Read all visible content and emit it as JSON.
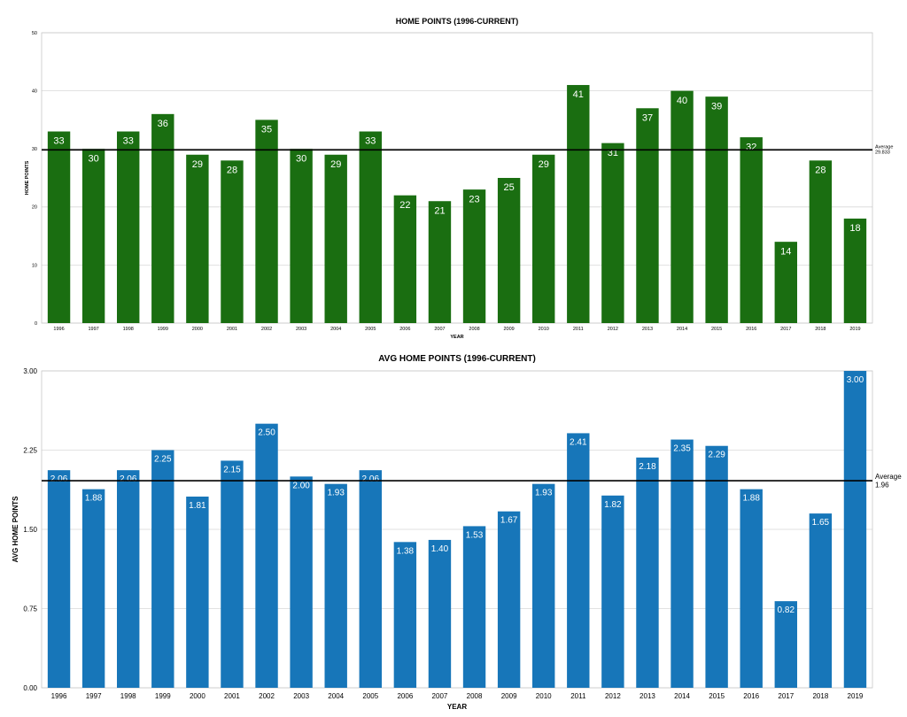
{
  "chart_data": [
    {
      "type": "bar",
      "title": "HOME POINTS (1996-CURRENT)",
      "xlabel": "YEAR",
      "ylabel": "HOME POINTS",
      "categories": [
        "1996",
        "1997",
        "1998",
        "1999",
        "2000",
        "2001",
        "2002",
        "2003",
        "2004",
        "2005",
        "2006",
        "2007",
        "2008",
        "2009",
        "2010",
        "2011",
        "2012",
        "2013",
        "2014",
        "2015",
        "2016",
        "2017",
        "2018",
        "2019"
      ],
      "values": [
        33,
        30,
        33,
        36,
        29,
        28,
        35,
        30,
        29,
        33,
        22,
        21,
        23,
        25,
        29,
        41,
        31,
        37,
        40,
        39,
        32,
        14,
        28,
        18
      ],
      "value_labels": [
        "33",
        "30",
        "33",
        "36",
        "29",
        "28",
        "35",
        "30",
        "29",
        "33",
        "22",
        "21",
        "23",
        "25",
        "29",
        "41",
        "31",
        "37",
        "40",
        "39",
        "32",
        "14",
        "28",
        "18"
      ],
      "ylim": [
        0,
        50
      ],
      "yticks": [
        0,
        10,
        20,
        30,
        40,
        50
      ],
      "ytick_labels": [
        "0",
        "10",
        "20",
        "30",
        "40",
        "50"
      ],
      "average": 29.833,
      "average_label_line1": "Average",
      "average_label_line2": "29.833",
      "bar_color": "#1a6e11",
      "grid": true
    },
    {
      "type": "bar",
      "title": "AVG HOME POINTS (1996-CURRENT)",
      "xlabel": "YEAR",
      "ylabel": "AVG HOME POINTS",
      "categories": [
        "1996",
        "1997",
        "1998",
        "1999",
        "2000",
        "2001",
        "2002",
        "2003",
        "2004",
        "2005",
        "2006",
        "2007",
        "2008",
        "2009",
        "2010",
        "2011",
        "2012",
        "2013",
        "2014",
        "2015",
        "2016",
        "2017",
        "2018",
        "2019"
      ],
      "values": [
        2.06,
        1.88,
        2.06,
        2.25,
        1.81,
        2.15,
        2.5,
        2.0,
        1.93,
        2.06,
        1.38,
        1.4,
        1.53,
        1.67,
        1.93,
        2.41,
        1.82,
        2.18,
        2.35,
        2.29,
        1.88,
        0.82,
        1.65,
        3.0
      ],
      "value_labels": [
        "2.06",
        "1.88",
        "2.06",
        "2.25",
        "1.81",
        "2.15",
        "2.50",
        "2.00",
        "1.93",
        "2.06",
        "1.38",
        "1.40",
        "1.53",
        "1.67",
        "1.93",
        "2.41",
        "1.82",
        "2.18",
        "2.35",
        "2.29",
        "1.88",
        "0.82",
        "1.65",
        "3.00"
      ],
      "ylim": [
        0,
        3
      ],
      "yticks": [
        0,
        0.75,
        1.5,
        2.25,
        3
      ],
      "ytick_labels": [
        "0.00",
        "0.75",
        "1.50",
        "2.25",
        "3.00"
      ],
      "average": 1.96,
      "average_label_line1": "Average",
      "average_label_line2": "1.96",
      "bar_color": "#1776b9",
      "grid": true
    }
  ]
}
